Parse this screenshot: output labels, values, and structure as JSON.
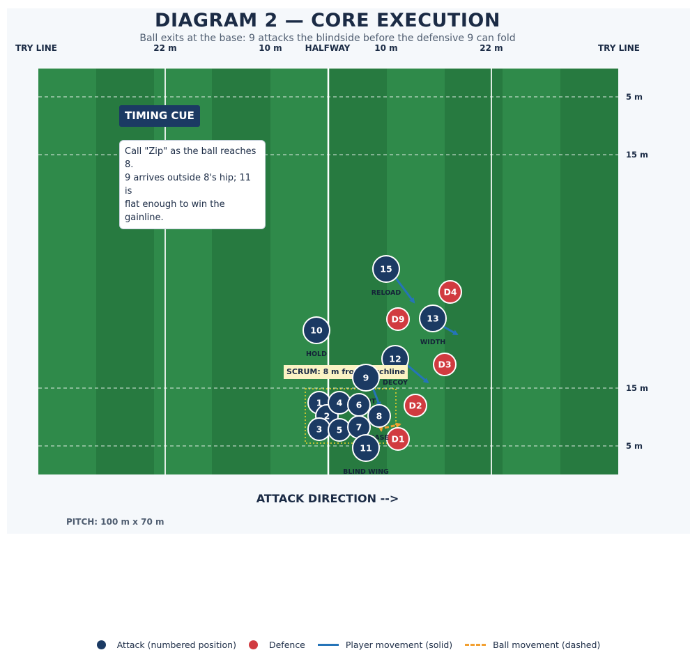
{
  "title": "DIAGRAM 2 — CORE EXECUTION",
  "subtitle": "Ball exits at the base: 9 attacks the blindside before the defensive 9 can fold",
  "top_labels": {
    "try_left": "TRY LINE",
    "m22_left": "22 m",
    "m10_left": "10 m",
    "halfway": "HALFWAY",
    "m10_right": "10 m",
    "m22_right": "22 m",
    "try_right": "TRY LINE"
  },
  "side_labels": {
    "m5_top": "5 m",
    "m15_top": "15 m",
    "m15_bottom": "15 m",
    "m5_bottom": "5 m"
  },
  "timing_cue": {
    "title": "TIMING CUE",
    "lines": [
      "Call \"Zip\" as the ball reaches 8.",
      "9 arrives outside 8's hip; 11 is",
      "flat enough to win the gainline."
    ]
  },
  "scrum_label": "SCRUM: 8 m from touchline",
  "attack_direction": "ATTACK DIRECTION  -->",
  "pitch_size": "PITCH: 100 m x 70 m",
  "attackers": [
    {
      "num": "15",
      "label": "RELOAD"
    },
    {
      "num": "13",
      "label": "WIDTH"
    },
    {
      "num": "10",
      "label": "HOLD"
    },
    {
      "num": "12",
      "label": "DECOY"
    },
    {
      "num": "9",
      "label": "DART"
    },
    {
      "num": "8",
      "label": "BASE"
    },
    {
      "num": "11",
      "label": "BLIND WING"
    },
    {
      "num": "1",
      "label": ""
    },
    {
      "num": "2",
      "label": ""
    },
    {
      "num": "3",
      "label": ""
    },
    {
      "num": "4",
      "label": ""
    },
    {
      "num": "5",
      "label": ""
    },
    {
      "num": "6",
      "label": ""
    },
    {
      "num": "7",
      "label": ""
    }
  ],
  "defenders": [
    "D4",
    "D9",
    "D3",
    "D2",
    "D1"
  ],
  "legend": {
    "attack": "Attack (numbered position)",
    "defence": "Defence",
    "player_movement": "Player movement (solid)",
    "ball_movement": "Ball movement (dashed)"
  },
  "colors": {
    "pitch_dark": "#277a40",
    "pitch_light": "#2f8a4a",
    "attack": "#1b3a63",
    "defence": "#d13b40",
    "player_move": "#2574b8",
    "ball_move": "#f2a031",
    "scrum_box": "#e8d12c"
  }
}
